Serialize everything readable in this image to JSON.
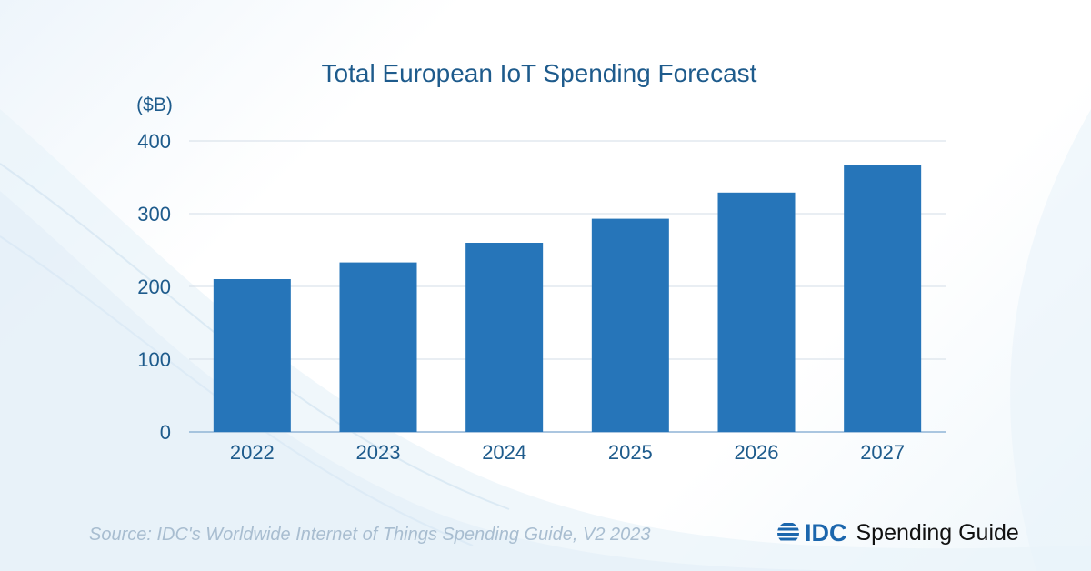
{
  "chart_data": {
    "type": "bar",
    "title": "Total European IoT Spending Forecast",
    "ylabel": "($B)",
    "xlabel": "",
    "categories": [
      "2022",
      "2023",
      "2024",
      "2025",
      "2026",
      "2027"
    ],
    "values": [
      210,
      233,
      260,
      293,
      329,
      367
    ],
    "ylim": [
      0,
      400
    ],
    "yticks": [
      "0",
      "100",
      "200",
      "300",
      "400"
    ],
    "grid": true,
    "bar_color": "#2675b9"
  },
  "footer": {
    "source": "Source: IDC's Worldwide Internet of Things Spending Guide, V2 2023"
  },
  "brand": {
    "name": "IDC",
    "product": "Spending Guide",
    "icon": "idc-globe-icon",
    "color": "#1b66ad"
  }
}
